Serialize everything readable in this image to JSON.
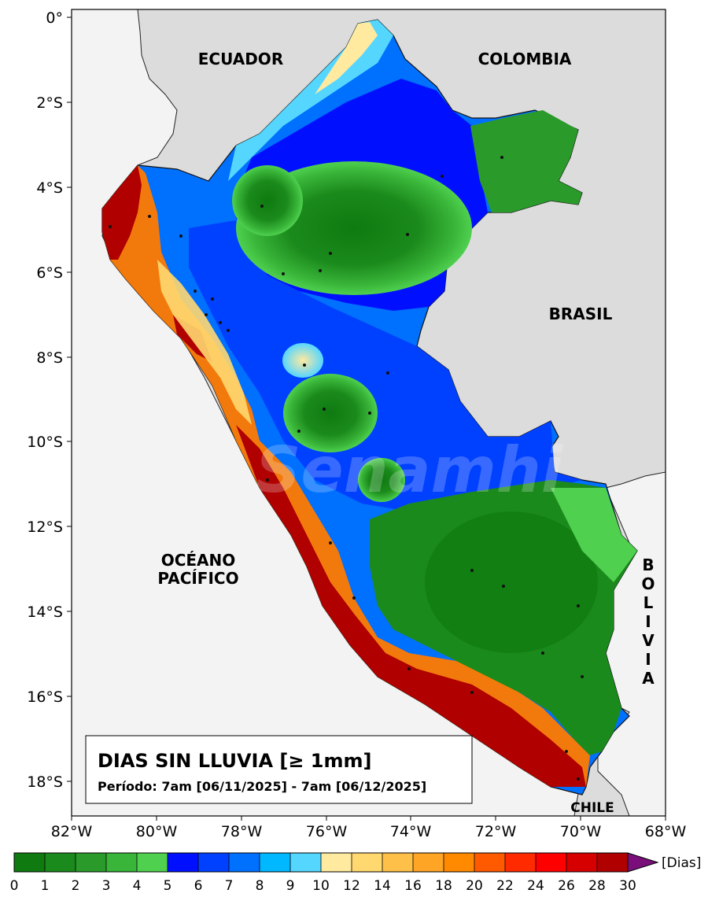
{
  "map": {
    "title": "DIAS SIN LLUVIA [≥ 1mm]",
    "period": "Período: 7am [06/11/2025] - 7am [06/12/2025]",
    "watermark": "Senamhi",
    "labels": {
      "ecuador": "ECUADOR",
      "colombia": "COLOMBIA",
      "brasil": "BRASIL",
      "oceano_1": "OCÉANO",
      "oceano_2": "PACÍFICO",
      "bolivia": [
        "B",
        "O",
        "L",
        "I",
        "V",
        "I",
        "A"
      ],
      "chile": "CHILE"
    },
    "lat_ticks": [
      "0°",
      "2°S",
      "4°S",
      "6°S",
      "8°S",
      "10°S",
      "12°S",
      "14°S",
      "16°S",
      "18°S"
    ],
    "lon_ticks": [
      "82°W",
      "80°W",
      "78°W",
      "76°W",
      "74°W",
      "72°W",
      "70°W",
      "68°W"
    ]
  },
  "colorbar": {
    "unit": "[Dias]",
    "ticks": [
      "0",
      "1",
      "2",
      "3",
      "4",
      "5",
      "6",
      "7",
      "8",
      "9",
      "10",
      "12",
      "14",
      "16",
      "18",
      "20",
      "22",
      "24",
      "26",
      "28",
      "30"
    ],
    "colors": [
      "#0e7a10",
      "#1b8a1c",
      "#2a9a2a",
      "#39b539",
      "#4fd04f",
      "#0010ff",
      "#0040ff",
      "#0070ff",
      "#00b8ff",
      "#55d6ff",
      "#ffeaa0",
      "#ffd870",
      "#ffc04a",
      "#ffa526",
      "#ff8a00",
      "#ff5a00",
      "#ff2a00",
      "#ff0000",
      "#d60000",
      "#b00000"
    ],
    "extend_color": "#7a0e7a"
  }
}
